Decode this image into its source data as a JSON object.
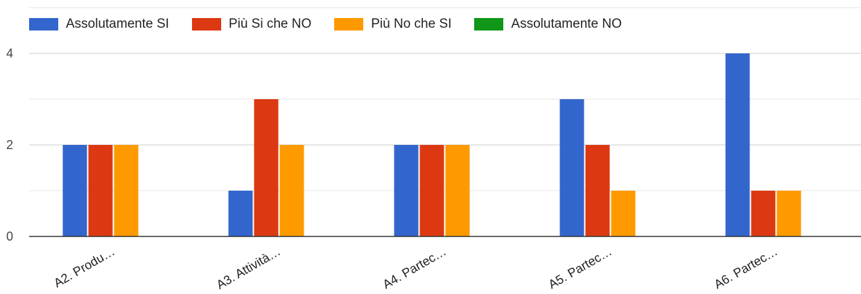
{
  "colors": {
    "series": [
      "#3366cc",
      "#dc3912",
      "#ff9900",
      "#109618"
    ],
    "grid": "#e6e6e6",
    "grid_major": "#cccccc",
    "axis": "#333333"
  },
  "chart_data": {
    "type": "bar",
    "categories": [
      "A2. Produ…",
      "A3. Attività…",
      "A4. Partec…",
      "A5. Partec…",
      "A6. Partec…"
    ],
    "series": [
      {
        "name": "Assolutamente SI",
        "values": [
          2,
          1,
          2,
          3,
          4
        ]
      },
      {
        "name": "Più Si che NO",
        "values": [
          2,
          3,
          2,
          2,
          1
        ]
      },
      {
        "name": "Più No che SI",
        "values": [
          2,
          2,
          2,
          1,
          1
        ]
      },
      {
        "name": "Assolutamente NO",
        "values": [
          0,
          0,
          0,
          0,
          0
        ]
      }
    ],
    "ylim": [
      0,
      4
    ],
    "yticks": [
      0,
      2,
      4
    ],
    "minor_gridlines": [
      1,
      3
    ],
    "grid": true,
    "legend": "top-left",
    "xlabel": "",
    "ylabel": "",
    "title": ""
  }
}
